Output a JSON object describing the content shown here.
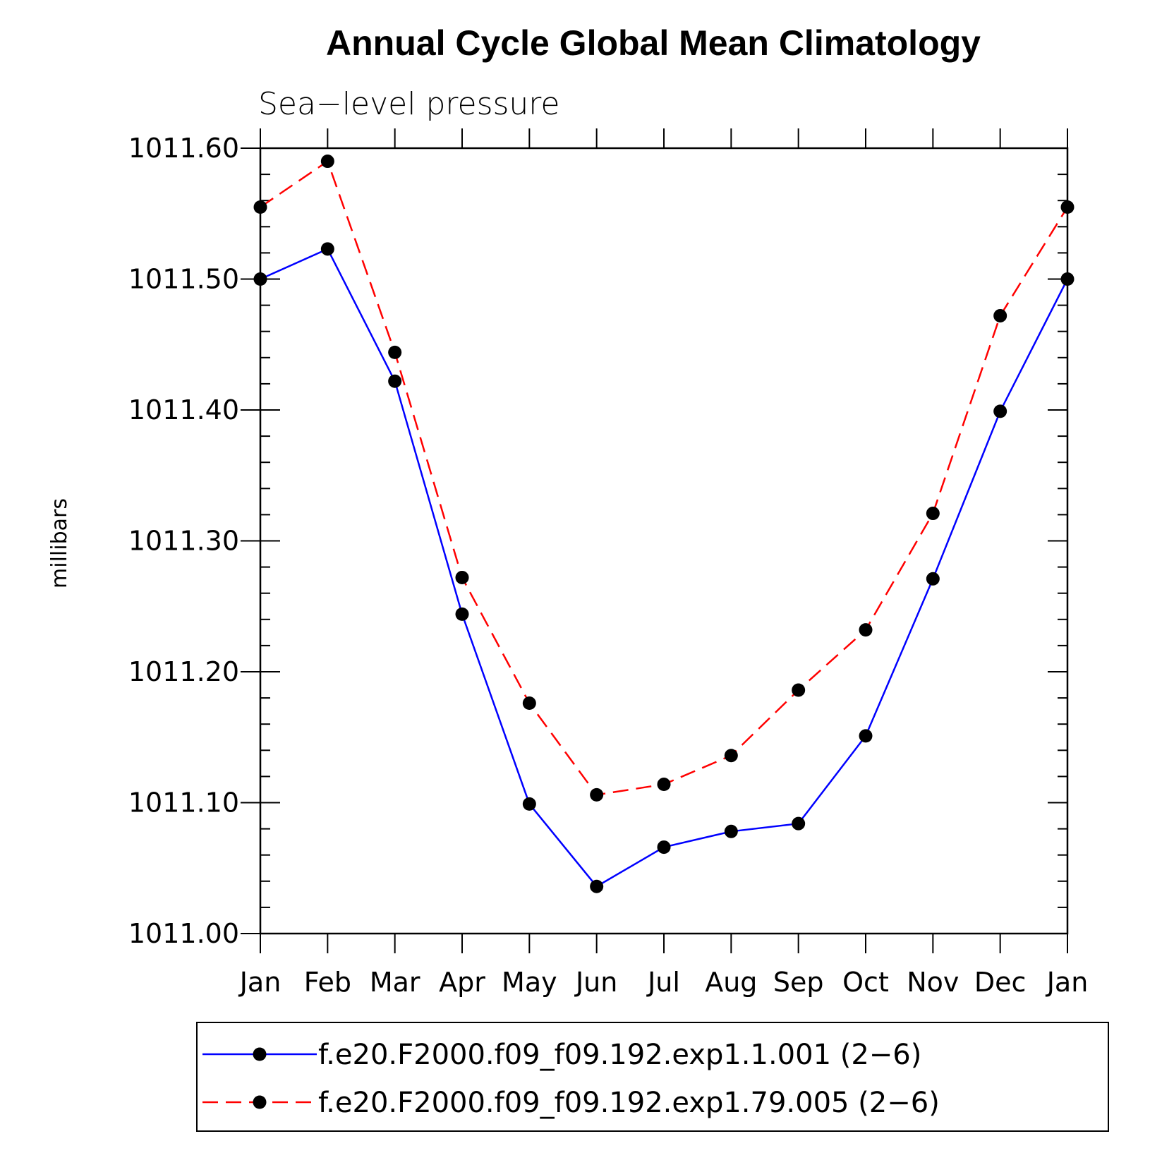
{
  "chart_data": {
    "type": "line",
    "title": "Annual Cycle Global Mean Climatology",
    "subtitle": "Sea−level pressure",
    "xlabel": "",
    "ylabel": "millibars",
    "categories": [
      "Jan",
      "Feb",
      "Mar",
      "Apr",
      "May",
      "Jun",
      "Jul",
      "Aug",
      "Sep",
      "Oct",
      "Nov",
      "Dec",
      "Jan"
    ],
    "ylim": [
      1011.0,
      1011.6
    ],
    "yticks": [
      1011.0,
      1011.1,
      1011.2,
      1011.3,
      1011.4,
      1011.5,
      1011.6
    ],
    "ytick_labels": [
      "1011.00",
      "1011.10",
      "1011.20",
      "1011.30",
      "1011.40",
      "1011.50",
      "1011.60"
    ],
    "grid": false,
    "legend_position": "bottom",
    "series": [
      {
        "name": "f.e20.F2000.f09_f09.192.exp1.1.001 (2−6)",
        "color": "#0000ff",
        "dash": "solid",
        "values": [
          1011.5,
          1011.523,
          1011.422,
          1011.244,
          1011.099,
          1011.036,
          1011.066,
          1011.078,
          1011.084,
          1011.151,
          1011.271,
          1011.399,
          1011.5
        ]
      },
      {
        "name": "f.e20.F2000.f09_f09.192.exp1.79.005 (2−6)",
        "color": "#ff0000",
        "dash": "dashed",
        "values": [
          1011.555,
          1011.59,
          1011.444,
          1011.272,
          1011.176,
          1011.106,
          1011.114,
          1011.136,
          1011.186,
          1011.232,
          1011.321,
          1011.472,
          1011.555
        ]
      }
    ]
  }
}
